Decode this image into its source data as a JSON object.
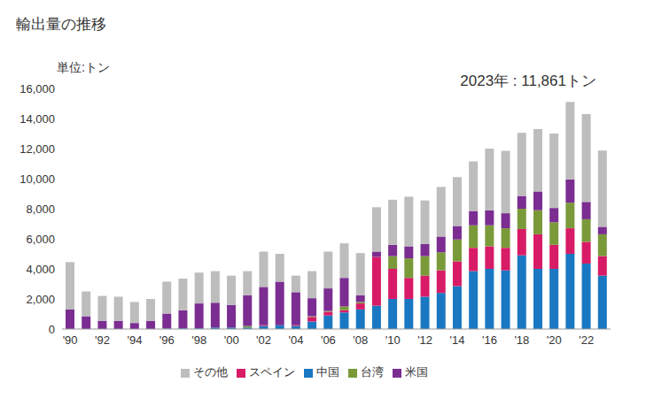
{
  "chart_data": {
    "type": "bar",
    "title": "輸出量の推移",
    "y_label": "単位:トン",
    "annotations": [
      "2023年 : 11,861トン"
    ],
    "stacked": true,
    "grid": false,
    "legend": "bottom",
    "categories": [
      "'90",
      null,
      "'92",
      null,
      "'94",
      null,
      "'96",
      null,
      "'98",
      null,
      "'00",
      null,
      "'02",
      null,
      "'04",
      null,
      "'06",
      null,
      "'08",
      null,
      "'10",
      null,
      "'12",
      null,
      "'14",
      null,
      "'16",
      null,
      "'18",
      null,
      "'20",
      null,
      "'22",
      null
    ],
    "ylim": [
      0,
      16000
    ],
    "yticks": [
      0,
      {
        "value": 2000,
        "label": "2,000"
      },
      {
        "value": 4000,
        "label": "4,000"
      },
      {
        "value": 6000,
        "label": "6,000"
      },
      {
        "value": 8000,
        "label": "8,000"
      },
      {
        "value": 10000,
        "label": "10,000"
      },
      {
        "value": 12000,
        "label": "12,000"
      },
      {
        "value": 14000,
        "label": "14,000"
      },
      {
        "value": 16000,
        "label": "16,000"
      }
    ],
    "series": [
      {
        "name": "中国",
        "color": "#1a78c2",
        "values": [
          0,
          0,
          0,
          0,
          0,
          0,
          30,
          50,
          50,
          100,
          100,
          100,
          200,
          250,
          200,
          500,
          900,
          1100,
          1300,
          1550,
          2000,
          2000,
          2150,
          2400,
          2850,
          3850,
          4000,
          3900,
          4900,
          4000,
          4000,
          5000,
          4350,
          3550
        ]
      },
      {
        "name": "スペイン",
        "color": "#d81b66",
        "values": [
          0,
          0,
          0,
          0,
          0,
          0,
          0,
          0,
          0,
          0,
          0,
          0,
          50,
          0,
          50,
          300,
          250,
          150,
          400,
          3250,
          2000,
          1400,
          1400,
          1500,
          1650,
          1550,
          1500,
          1500,
          1750,
          2300,
          1600,
          1700,
          1450,
          1300
        ]
      },
      {
        "name": "台湾",
        "color": "#7a9a3a",
        "values": [
          0,
          0,
          0,
          0,
          0,
          0,
          0,
          0,
          0,
          0,
          0,
          100,
          0,
          0,
          0,
          50,
          50,
          250,
          100,
          0,
          850,
          1300,
          1300,
          1200,
          1450,
          1500,
          1400,
          1300,
          1350,
          1600,
          1500,
          1700,
          1500,
          1450
        ]
      },
      {
        "name": "米国",
        "color": "#7b2d91",
        "values": [
          1300,
          850,
          550,
          550,
          400,
          550,
          1000,
          1200,
          1650,
          1650,
          1500,
          2050,
          2550,
          2900,
          2200,
          1200,
          1500,
          1900,
          450,
          350,
          750,
          800,
          800,
          1050,
          900,
          950,
          1000,
          1000,
          850,
          1250,
          950,
          1550,
          1150,
          500
        ]
      },
      {
        "name": "その他",
        "color": "#bdbdbd",
        "values": [
          3150,
          1650,
          1650,
          1600,
          1400,
          1450,
          2120,
          2100,
          2050,
          2100,
          1950,
          1600,
          2350,
          1850,
          1100,
          1800,
          2450,
          2300,
          2800,
          2950,
          3000,
          3300,
          2900,
          3300,
          3250,
          3300,
          4100,
          4150,
          4200,
          4150,
          4950,
          5150,
          5850,
          5061
        ]
      }
    ]
  }
}
